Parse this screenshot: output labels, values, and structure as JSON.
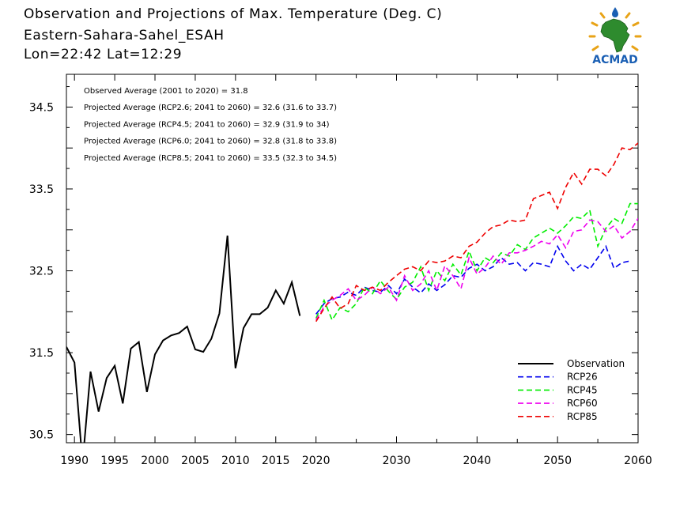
{
  "header": {
    "title": "Observation and Projections of Max. Temperature (Deg. C)",
    "region": "Eastern-Sahara-Sahel_ESAH",
    "coords": "Lon=22:42   Lat=12:29"
  },
  "logo": {
    "text": "ACMAD",
    "icon": "acmad-africa-logo",
    "brand_color": "#1a5fb4",
    "accent_color": "#e8a317"
  },
  "annotations": [
    "Observed Average (2001 to 2020) = 31.8",
    "Projected Average (RCP2.6; 2041 to 2060) = 32.6 (31.6 to 33.7)",
    "Projected Average (RCP4.5; 2041 to 2060) = 32.9 (31.9 to 34)",
    "Projected Average (RCP6.0; 2041 to 2060) = 32.8 (31.8 to 33.8)",
    "Projected Average (RCP8.5; 2041 to 2060) = 33.5 (32.3 to 34.5)"
  ],
  "chart_data": {
    "type": "line",
    "xlim": [
      1989,
      2060
    ],
    "ylim": [
      30.4,
      34.9
    ],
    "xticks": [
      1990,
      1995,
      2000,
      2005,
      2010,
      2015,
      2020,
      2030,
      2040,
      2050,
      2060
    ],
    "yticks": [
      30.5,
      31.5,
      32.5,
      33.5,
      34.5
    ],
    "legend_position": "bottom-right",
    "grid": false,
    "series": [
      {
        "name": "Observation",
        "color": "#000000",
        "dash": "solid",
        "x": [
          1989,
          1990,
          1991,
          1992,
          1993,
          1994,
          1995,
          1996,
          1997,
          1998,
          1999,
          2000,
          2001,
          2002,
          2003,
          2004,
          2005,
          2006,
          2007,
          2008,
          2009,
          2010,
          2011,
          2012,
          2013,
          2014,
          2015,
          2016,
          2017,
          2018,
          2019,
          2020
        ],
        "y": [
          31.57,
          31.38,
          30.15,
          31.27,
          30.78,
          31.19,
          31.34,
          30.88,
          31.55,
          31.63,
          31.02,
          31.48,
          31.65,
          31.71,
          31.74,
          31.82,
          31.54,
          31.51,
          31.67,
          31.98,
          32.93,
          31.31,
          31.8,
          31.97,
          31.97,
          32.05,
          32.26,
          32.1,
          32.36,
          31.95,
          null,
          null
        ]
      },
      {
        "name": "RCP26",
        "color": "#0000ee",
        "dash": "dashed",
        "x": [
          2020,
          2021,
          2022,
          2023,
          2024,
          2025,
          2026,
          2027,
          2028,
          2029,
          2030,
          2031,
          2032,
          2033,
          2034,
          2035,
          2036,
          2037,
          2038,
          2039,
          2040,
          2041,
          2042,
          2043,
          2044,
          2045,
          2046,
          2047,
          2048,
          2049,
          2050,
          2051,
          2052,
          2053,
          2054,
          2055,
          2056,
          2057,
          2058,
          2059
        ],
        "y": [
          31.97,
          32.1,
          32.16,
          32.18,
          32.24,
          32.2,
          32.3,
          32.26,
          32.24,
          32.32,
          32.22,
          32.4,
          32.3,
          32.23,
          32.34,
          32.26,
          32.33,
          32.44,
          32.42,
          32.53,
          32.58,
          32.5,
          32.55,
          32.66,
          32.58,
          32.6,
          32.5,
          32.6,
          32.58,
          32.55,
          32.8,
          32.62,
          32.5,
          32.58,
          32.52,
          32.66,
          32.8,
          32.53,
          32.6,
          32.62
        ]
      },
      {
        "name": "RCP45",
        "color": "#00ee00",
        "dash": "dashed",
        "x": [
          2020,
          2021,
          2022,
          2023,
          2024,
          2025,
          2026,
          2027,
          2028,
          2029,
          2030,
          2031,
          2032,
          2033,
          2034,
          2035,
          2036,
          2037,
          2038,
          2039,
          2040,
          2041,
          2042,
          2043,
          2044,
          2045,
          2046,
          2047,
          2048,
          2049,
          2050,
          2051,
          2052,
          2053,
          2054,
          2055,
          2056,
          2057,
          2058,
          2059,
          2060
        ],
        "y": [
          31.92,
          32.14,
          31.9,
          32.05,
          32.0,
          32.1,
          32.3,
          32.22,
          32.38,
          32.25,
          32.15,
          32.3,
          32.36,
          32.55,
          32.26,
          32.5,
          32.38,
          32.58,
          32.45,
          32.74,
          32.5,
          32.66,
          32.6,
          32.72,
          32.68,
          32.82,
          32.76,
          32.9,
          32.96,
          33.02,
          32.96,
          33.05,
          33.16,
          33.14,
          33.24,
          32.8,
          33.02,
          33.14,
          33.08,
          33.32,
          33.32
        ]
      },
      {
        "name": "RCP60",
        "color": "#ee00ee",
        "dash": "dashed",
        "x": [
          2020,
          2021,
          2022,
          2023,
          2024,
          2025,
          2026,
          2027,
          2028,
          2029,
          2030,
          2031,
          2032,
          2033,
          2034,
          2035,
          2036,
          2037,
          2038,
          2039,
          2040,
          2041,
          2042,
          2043,
          2044,
          2045,
          2046,
          2047,
          2048,
          2049,
          2050,
          2051,
          2052,
          2053,
          2054,
          2055,
          2056,
          2057,
          2058,
          2059,
          2060
        ],
        "y": [
          31.9,
          32.06,
          32.14,
          32.2,
          32.28,
          32.14,
          32.2,
          32.3,
          32.22,
          32.3,
          32.14,
          32.44,
          32.26,
          32.34,
          32.5,
          32.26,
          32.56,
          32.44,
          32.28,
          32.66,
          32.46,
          32.54,
          32.68,
          32.58,
          32.72,
          32.72,
          32.75,
          32.8,
          32.86,
          32.83,
          32.94,
          32.78,
          32.98,
          33.0,
          33.12,
          33.1,
          32.98,
          33.05,
          32.9,
          32.98,
          33.14
        ]
      },
      {
        "name": "RCP85",
        "color": "#ee0000",
        "dash": "dashed",
        "x": [
          2020,
          2021,
          2022,
          2023,
          2024,
          2025,
          2026,
          2027,
          2028,
          2029,
          2030,
          2031,
          2032,
          2033,
          2034,
          2035,
          2036,
          2037,
          2038,
          2039,
          2040,
          2041,
          2042,
          2043,
          2044,
          2045,
          2046,
          2047,
          2048,
          2049,
          2050,
          2051,
          2052,
          2053,
          2054,
          2055,
          2056,
          2057,
          2058,
          2059,
          2060
        ],
        "y": [
          31.88,
          32.04,
          32.18,
          32.04,
          32.1,
          32.32,
          32.26,
          32.3,
          32.26,
          32.36,
          32.44,
          32.52,
          32.55,
          32.5,
          32.62,
          32.6,
          32.62,
          32.68,
          32.66,
          32.8,
          32.85,
          32.96,
          33.04,
          33.06,
          33.12,
          33.1,
          33.12,
          33.38,
          33.42,
          33.46,
          33.26,
          33.52,
          33.7,
          33.56,
          33.74,
          33.74,
          33.66,
          33.8,
          34.0,
          33.98,
          34.06
        ]
      }
    ]
  }
}
